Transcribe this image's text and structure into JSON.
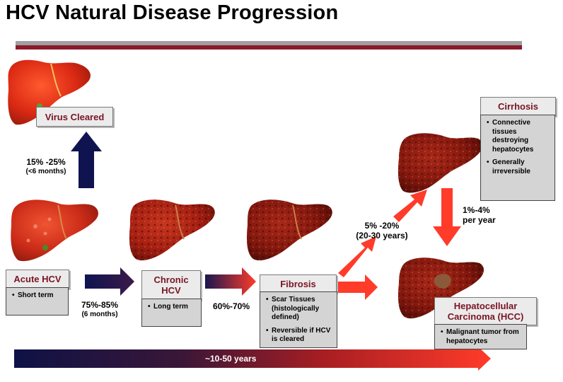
{
  "title": "HCV Natural Disease Progression",
  "stages": {
    "virus_cleared": "Virus Cleared",
    "acute": {
      "label": "Acute HCV",
      "bullets": [
        "Short term"
      ]
    },
    "chronic": {
      "label_line1": "Chronic",
      "label_line2": "HCV",
      "bullets": [
        "Long term"
      ]
    },
    "fibrosis": {
      "label": "Fibrosis",
      "bullets": [
        "Scar Tissues (histologically defined)",
        "Reversible if HCV is cleared"
      ]
    },
    "cirrhosis": {
      "label": "Cirrhosis",
      "bullets": [
        "Connective tissues destroying hepatocytes",
        "Generally irreversible"
      ]
    },
    "hcc": {
      "label_line1": "Hepatocellular",
      "label_line2": "Carcinoma (HCC)",
      "bullets": [
        "Malignant tumor from hepatocytes"
      ]
    }
  },
  "rates": {
    "cleared": {
      "value": "15% -25%",
      "note": "(<6 months)"
    },
    "acute_to_chronic": {
      "value": "75%-85%",
      "note": "(6 months)"
    },
    "chronic_to_fibrosis": {
      "value": "60%-70%"
    },
    "fibrosis_to_cirrhosis": {
      "value": "5% -20%",
      "note": "(20-30 years)"
    },
    "cirrhosis_to_hcc": {
      "value": "1%-4%",
      "note": "per year"
    }
  },
  "timeline": {
    "label": "~10-50 years"
  },
  "colors": {
    "title_rule_grey": "#a0a0a0",
    "title_rule_red": "#8b1a2b",
    "label_text": "#7a1424",
    "navy": "#0f1450",
    "arrow_red": "#ff3b2a",
    "liver_bright": "#e8321a",
    "liver_dark": "#7a140c"
  }
}
